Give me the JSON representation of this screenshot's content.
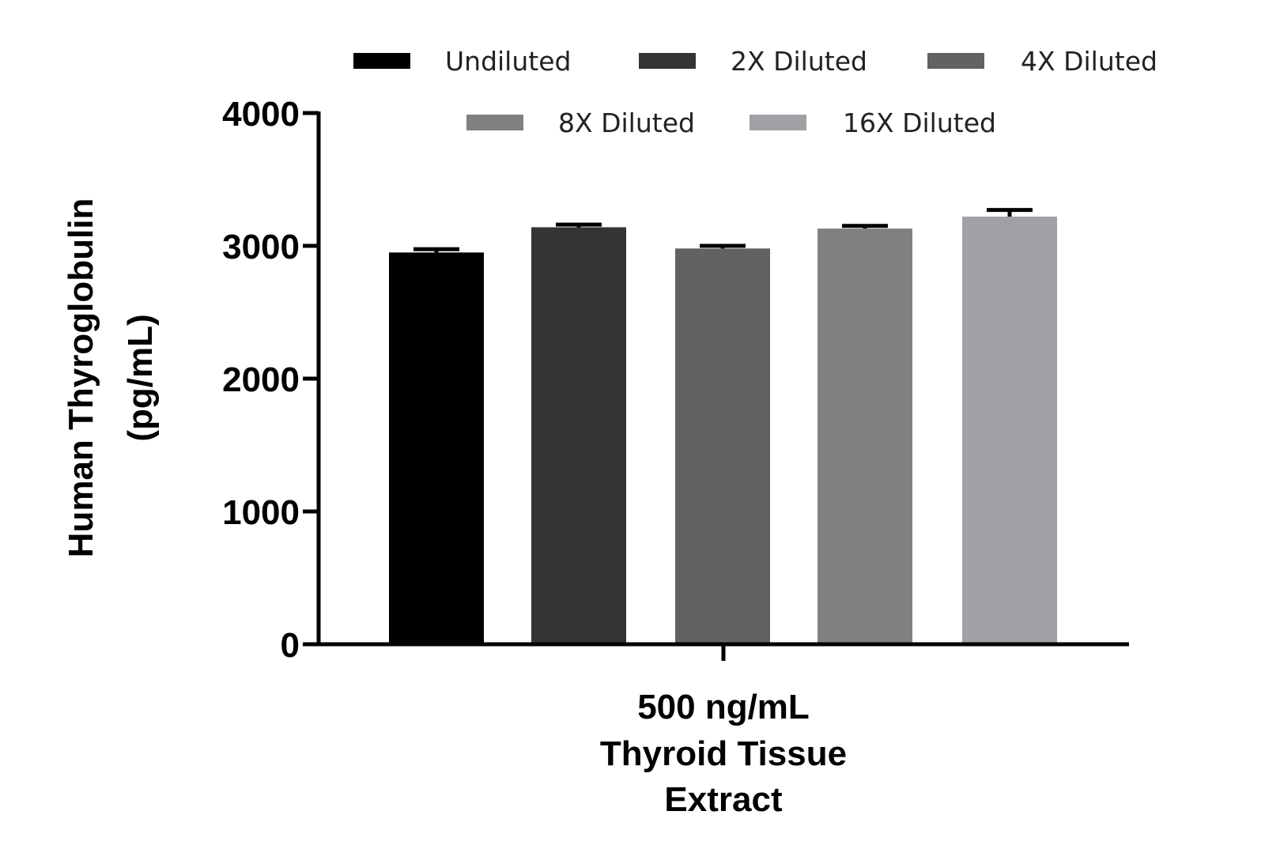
{
  "chart_data": {
    "type": "bar",
    "title": "",
    "ylabel_lines": [
      "Human Thyroglobulin",
      "(pg/mL)"
    ],
    "xlabel": "",
    "categories": [
      "500 ng/mL Thyroid Tissue Extract"
    ],
    "category_label_lines": [
      "500 ng/mL",
      "Thyroid Tissue",
      "Extract"
    ],
    "ylim": [
      0,
      4000
    ],
    "yticks": [
      0,
      1000,
      2000,
      3000,
      4000
    ],
    "grid": false,
    "legend_position": "top",
    "series": [
      {
        "name": "Undiluted",
        "values": [
          2950
        ],
        "error": [
          25
        ],
        "color": "#000000"
      },
      {
        "name": "2X Diluted",
        "values": [
          3140
        ],
        "error": [
          20
        ],
        "color": "#343434"
      },
      {
        "name": "4X Diluted",
        "values": [
          2980
        ],
        "error": [
          20
        ],
        "color": "#626262"
      },
      {
        "name": "8X Diluted",
        "values": [
          3130
        ],
        "error": [
          20
        ],
        "color": "#808080"
      },
      {
        "name": "16X Diluted",
        "values": [
          3220
        ],
        "error": [
          50
        ],
        "color": "#a1a1a5"
      }
    ]
  }
}
